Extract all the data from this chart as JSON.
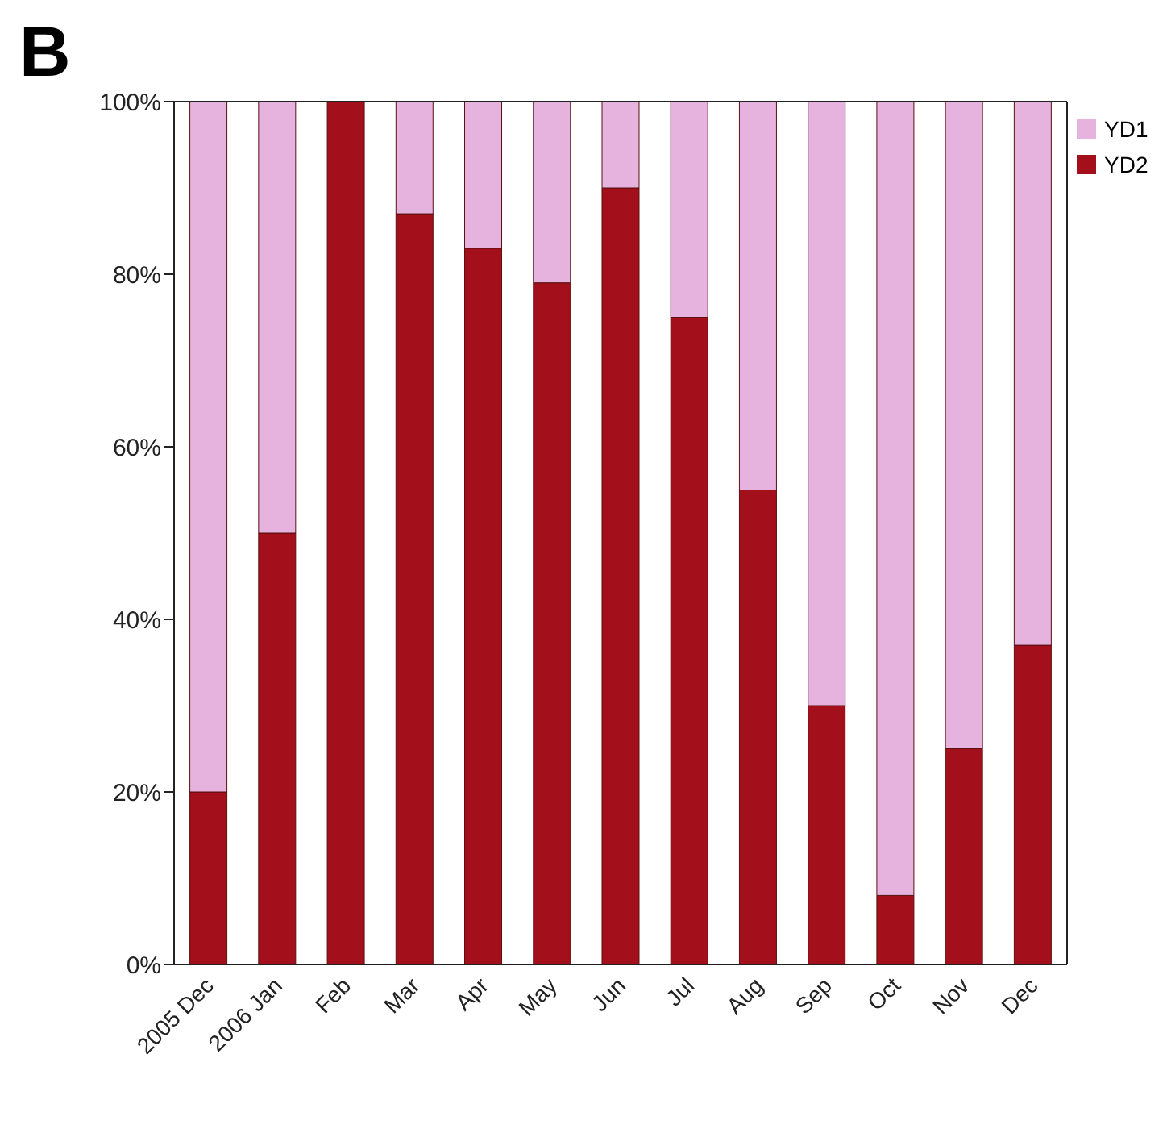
{
  "chart_data": {
    "type": "bar",
    "title": "B",
    "stacked": true,
    "categories": [
      "2005 Dec",
      "2006 Jan",
      "Feb",
      "Mar",
      "Apr",
      "May",
      "Jun",
      "Jul",
      "Aug",
      "Sep",
      "Oct",
      "Nov",
      "Dec"
    ],
    "series": [
      {
        "name": "YD2",
        "color": "#a30f1b",
        "values": [
          20,
          50,
          100,
          87,
          83,
          79,
          90,
          75,
          55,
          30,
          8,
          25,
          37
        ]
      },
      {
        "name": "YD1",
        "color": "#e6b3df",
        "values": [
          80,
          50,
          0,
          13,
          17,
          21,
          10,
          25,
          45,
          70,
          92,
          75,
          63
        ]
      }
    ],
    "ylim": [
      0,
      100
    ],
    "yticks": [
      {
        "value": 0,
        "label": "0%"
      },
      {
        "value": 20,
        "label": "20%"
      },
      {
        "value": 40,
        "label": "40%"
      },
      {
        "value": 60,
        "label": "60%"
      },
      {
        "value": 80,
        "label": "80%"
      },
      {
        "value": 100,
        "label": "100%"
      }
    ],
    "grid": false,
    "legend": "top right"
  }
}
